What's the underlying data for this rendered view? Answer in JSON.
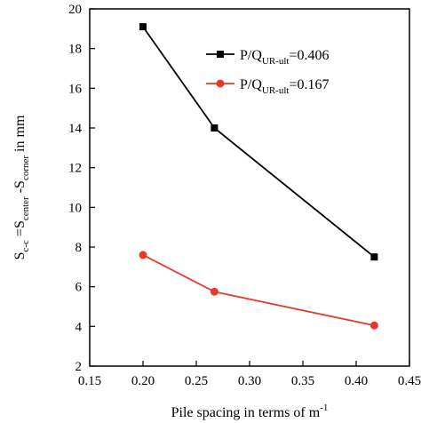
{
  "chart_data": {
    "type": "line",
    "xlabel": {
      "main": "Pile spacing in terms of m",
      "sup": "-1"
    },
    "ylabel": {
      "parts": [
        {
          "t": "S",
          "s": ""
        },
        {
          "t": "c-c",
          "s": "sub"
        },
        {
          "t": " =S",
          "s": ""
        },
        {
          "t": "center",
          "s": "sub"
        },
        {
          "t": " -S",
          "s": ""
        },
        {
          "t": "corner",
          "s": "sub"
        },
        {
          "t": " in mm",
          "s": ""
        }
      ]
    },
    "xlim": [
      0.15,
      0.45
    ],
    "ylim": [
      2,
      20
    ],
    "x_ticks": [
      "0.15",
      "0.20",
      "0.25",
      "0.30",
      "0.35",
      "0.40",
      "0.45"
    ],
    "y_ticks": [
      "2",
      "4",
      "6",
      "8",
      "10",
      "12",
      "14",
      "16",
      "18",
      "20"
    ],
    "grid": false,
    "legend_position": "top-right",
    "series": [
      {
        "legend": {
          "p": "P/Q",
          "sub": "UR-ult",
          "v": "=0.406"
        },
        "color": "#000000",
        "marker": "square",
        "x": [
          0.2,
          0.267,
          0.417
        ],
        "y": [
          19.1,
          14.0,
          7.5
        ]
      },
      {
        "legend": {
          "p": "P/Q",
          "sub": "UR-ult",
          "v": "=0.167"
        },
        "color": "#e8392c",
        "marker": "circle",
        "x": [
          0.2,
          0.267,
          0.417
        ],
        "y": [
          7.6,
          5.75,
          4.05
        ]
      }
    ]
  }
}
